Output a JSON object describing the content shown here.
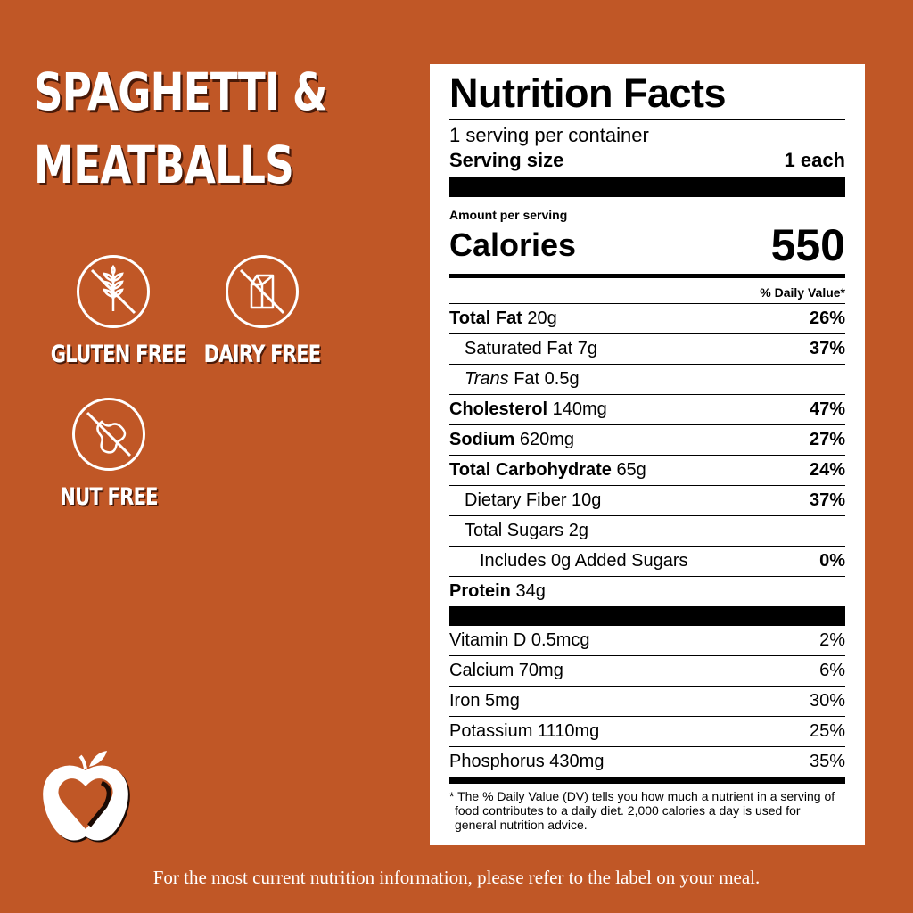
{
  "product": {
    "title_line1": "SPAGHETTI &",
    "title_line2": "MEATBALLS"
  },
  "badges": [
    {
      "label": "GLUTEN FREE",
      "icon": "wheat-crossed-icon"
    },
    {
      "label": "DAIRY FREE",
      "icon": "milk-carton-crossed-icon"
    },
    {
      "label": "NUT FREE",
      "icon": "peanut-crossed-icon"
    }
  ],
  "label": {
    "title": "Nutrition Facts",
    "servings": "1 serving per container",
    "serving_size_label": "Serving size",
    "serving_size_value": "1 each",
    "amount_per_serving": "Amount per serving",
    "calories_label": "Calories",
    "calories_value": "550",
    "dv_header": "% Daily Value*",
    "nutrients": [
      {
        "name": "Total Fat",
        "amount": "20g",
        "dv": "26%"
      },
      {
        "name": "Saturated Fat",
        "amount": "7g",
        "dv": "37%"
      },
      {
        "name": "Trans",
        "name_suffix": "Fat",
        "amount": "0.5g",
        "dv": ""
      },
      {
        "name": "Cholesterol",
        "amount": "140mg",
        "dv": "47%"
      },
      {
        "name": "Sodium",
        "amount": "620mg",
        "dv": "27%"
      },
      {
        "name": "Total Carbohydrate",
        "amount": "65g",
        "dv": "24%"
      },
      {
        "name": "Dietary Fiber",
        "amount": "10g",
        "dv": "37%"
      },
      {
        "name": "Total Sugars",
        "amount": "2g",
        "dv": ""
      },
      {
        "name": "Includes 0g Added Sugars",
        "amount": "",
        "dv": "0%"
      },
      {
        "name": "Protein",
        "amount": "34g",
        "dv": ""
      }
    ],
    "vitamins": [
      {
        "name": "Vitamin D 0.5mcg",
        "dv": "2%"
      },
      {
        "name": "Calcium 70mg",
        "dv": "6%"
      },
      {
        "name": "Iron 5mg",
        "dv": "30%"
      },
      {
        "name": "Potassium 1110mg",
        "dv": "25%"
      },
      {
        "name": "Phosphorus 430mg",
        "dv": "35%"
      }
    ],
    "footnote": "* The % Daily Value (DV) tells you how much a nutrient in a serving of food contributes to a daily diet. 2,000 calories a day is used for general nutrition advice."
  },
  "footer": "For the most current nutrition information, please refer to the label on your meal.",
  "colors": {
    "background": "#c05726",
    "text": "#ffffff",
    "shadow": "#4a1a08"
  }
}
